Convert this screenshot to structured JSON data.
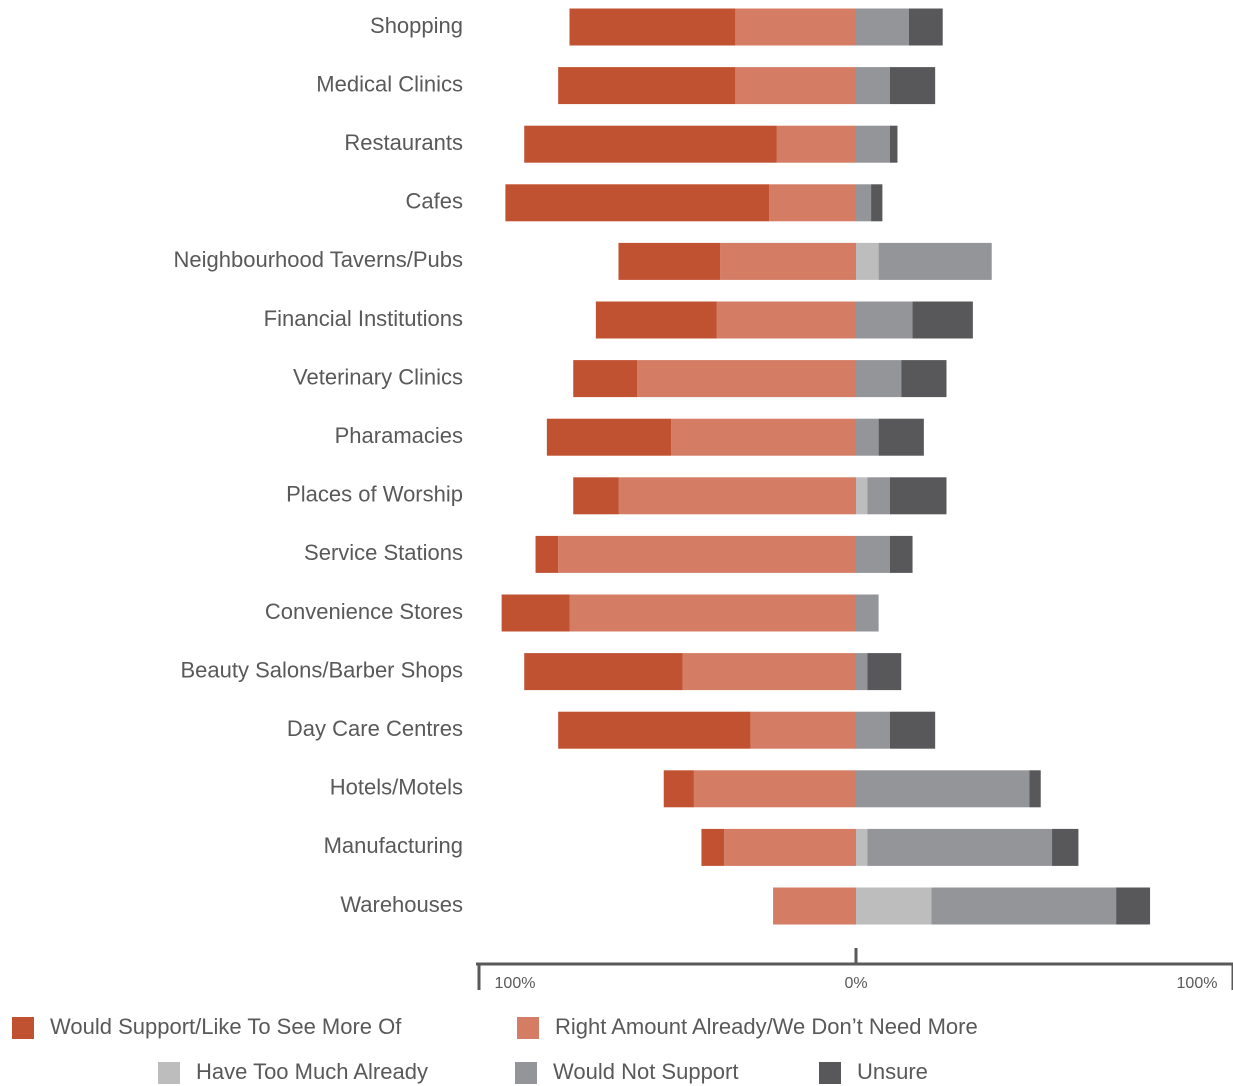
{
  "chart_data": {
    "type": "diverging-bar",
    "categories": [
      "Shopping",
      "Medical Clinics",
      "Restaurants",
      "Cafes",
      "Neighbourhood Taverns/Pubs",
      "Financial Institutions",
      "Veterinary Clinics",
      "Pharamacies",
      "Places of Worship",
      "Service Stations",
      "Convenience Stores",
      "Beauty Salons/Barber Shops",
      "Day Care Centres",
      "Hotels/Motels",
      "Manufacturing",
      "Warehouses"
    ],
    "series": [
      {
        "name": "Would Support/Like To See More Of",
        "color": "#c05131",
        "values": [
          -44,
          -47,
          -67,
          -70,
          -27,
          -32,
          -17,
          -33,
          -12,
          -6,
          -18,
          -42,
          -51,
          -8,
          -6,
          0
        ]
      },
      {
        "name": "Right Amount Already/We Don’t Need More",
        "color": "#d47c64",
        "values": [
          -32,
          -32,
          -21,
          -23,
          -36,
          -37,
          -58,
          -49,
          -63,
          -79,
          -76,
          -46,
          -28,
          -43,
          -35,
          -22
        ]
      },
      {
        "name": "Have Too Much Already",
        "color": "#bdbdbe",
        "values": [
          0,
          0,
          0,
          0,
          6,
          0,
          0,
          0,
          3,
          0,
          0,
          0,
          0,
          0,
          3,
          20
        ]
      },
      {
        "name": "Would Not Support",
        "color": "#949598",
        "values": [
          14,
          9,
          9,
          4,
          30,
          15,
          12,
          6,
          6,
          9,
          6,
          3,
          9,
          46,
          49,
          49
        ]
      },
      {
        "name": "Unsure",
        "color": "#58585a",
        "values": [
          9,
          12,
          2,
          3,
          0,
          16,
          12,
          12,
          15,
          6,
          0,
          9,
          12,
          3,
          7,
          9
        ]
      }
    ],
    "xlim": [
      -100,
      100
    ],
    "xticks": [
      {
        "value": -100,
        "label": "100%"
      },
      {
        "value": 0,
        "label": "0%"
      },
      {
        "value": 100,
        "label": "100%"
      }
    ]
  }
}
